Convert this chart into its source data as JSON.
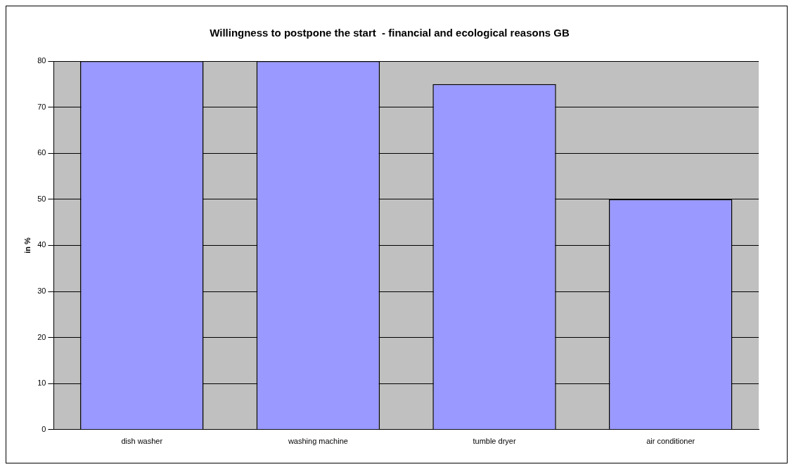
{
  "chart_data": {
    "type": "bar",
    "title": "Willingness to postpone the start  - financial and ecological reasons GB",
    "ylabel": "in %",
    "categories": [
      "dish washer",
      "washing machine",
      "tumble dryer",
      "air conditioner"
    ],
    "values": [
      80,
      80,
      75,
      50
    ],
    "color": "#9999ff",
    "ylim": [
      0,
      80
    ],
    "yticks": [
      0,
      10,
      20,
      30,
      40,
      50,
      60,
      70,
      80
    ],
    "grid": "y",
    "legend": false
  }
}
